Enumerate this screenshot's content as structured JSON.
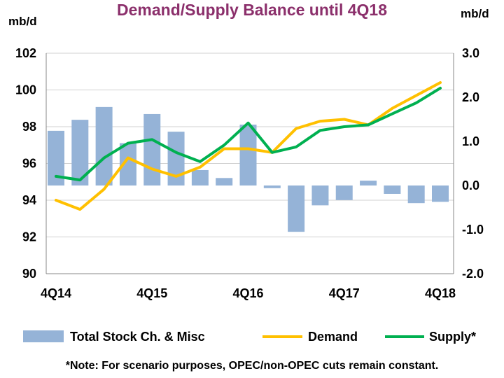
{
  "chart_data": {
    "type": "bar",
    "title": "Demand/Supply Balance until 4Q18",
    "left_axis": {
      "unit": "mb/d",
      "min": 90,
      "max": 102,
      "ticks": [
        90,
        92,
        94,
        96,
        98,
        100,
        102
      ]
    },
    "right_axis": {
      "unit": "mb/d",
      "min": -2.0,
      "max": 3.0,
      "ticks": [
        "-2.0",
        "-1.0",
        "0.0",
        "1.0",
        "2.0",
        "3.0"
      ]
    },
    "x_tick_labels": [
      "4Q14",
      "4Q15",
      "4Q16",
      "4Q17",
      "4Q18"
    ],
    "x_tick_indices": [
      0,
      4,
      8,
      12,
      16
    ],
    "grid": "horizontal",
    "legend_position": "bottom",
    "series": [
      {
        "name": "Total Stock Ch. & Misc",
        "type": "bar",
        "axis": "right",
        "color": "#95b3d7",
        "values": [
          1.24,
          1.49,
          1.78,
          0.96,
          1.62,
          1.22,
          0.35,
          0.17,
          1.38,
          -0.06,
          -1.05,
          -0.45,
          -0.33,
          0.11,
          -0.19,
          -0.4,
          -0.37
        ]
      },
      {
        "name": "Demand",
        "type": "line",
        "axis": "left",
        "color": "#ffc000",
        "values": [
          94.0,
          93.5,
          94.6,
          96.3,
          95.7,
          95.3,
          95.8,
          96.8,
          96.8,
          96.6,
          97.9,
          98.3,
          98.4,
          98.1,
          99.0,
          99.7,
          100.4
        ]
      },
      {
        "name": "Supply*",
        "type": "line",
        "axis": "left",
        "color": "#00b050",
        "values": [
          95.3,
          95.1,
          96.3,
          97.1,
          97.3,
          96.6,
          96.1,
          97.0,
          98.2,
          96.6,
          96.9,
          97.8,
          98.0,
          98.1,
          98.7,
          99.3,
          100.1
        ]
      }
    ],
    "note": "*Note: For scenario purposes, OPEC/non-OPEC cuts remain constant."
  }
}
